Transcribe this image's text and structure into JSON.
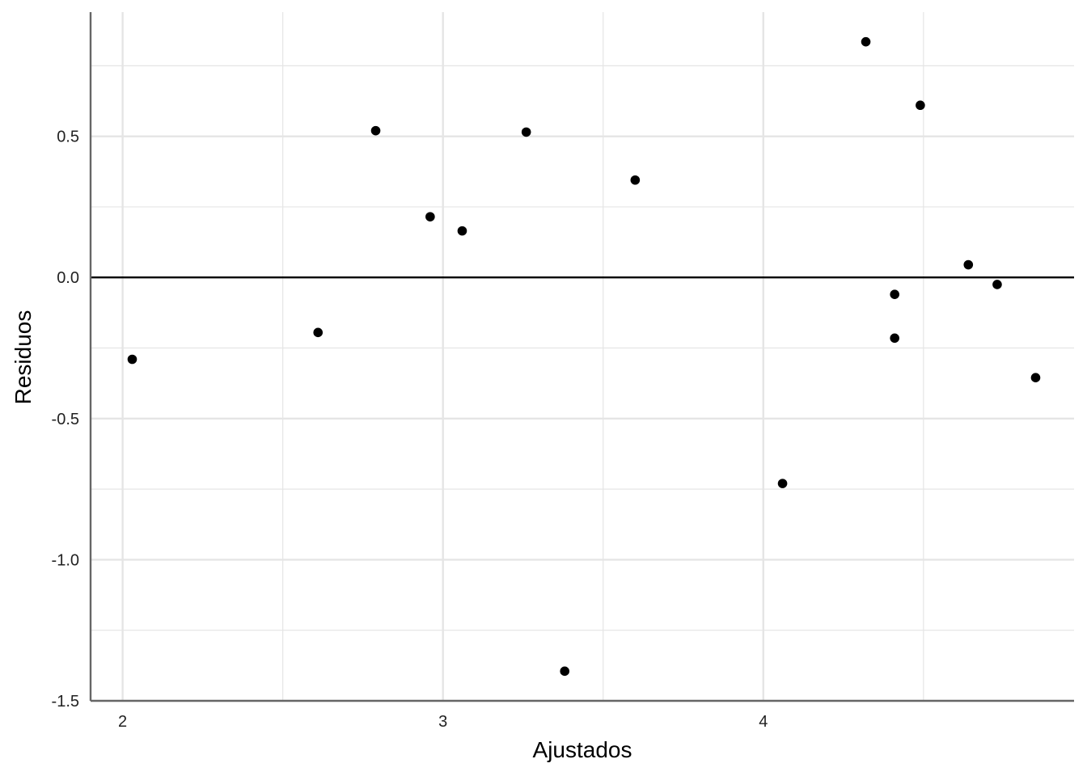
{
  "chart_data": {
    "type": "scatter",
    "title": "",
    "xlabel": "Ajustados",
    "ylabel": "Residuos",
    "xlim": [
      1.9,
      4.97
    ],
    "ylim": [
      -1.5,
      0.94
    ],
    "x_ticks": [
      2,
      3,
      4
    ],
    "x_tick_labels": [
      "2",
      "3",
      "4"
    ],
    "x_minor_ticks": [
      2.5,
      3.5,
      4.5
    ],
    "y_ticks": [
      -1.5,
      -1.0,
      -0.5,
      0.0,
      0.5
    ],
    "y_tick_labels": [
      "-1.5",
      "-1.0",
      "-0.5",
      "0.0",
      "0.5"
    ],
    "y_minor_ticks": [
      -1.25,
      -0.75,
      -0.25,
      0.25,
      0.75
    ],
    "grid": true,
    "reference_line": {
      "y": 0
    },
    "colors": {
      "points": "#000000",
      "grid": "#e5e5e5",
      "axis": "#666666",
      "reference": "#000000"
    },
    "points": [
      {
        "x": 2.03,
        "y": -0.29
      },
      {
        "x": 2.61,
        "y": -0.195
      },
      {
        "x": 2.79,
        "y": 0.52
      },
      {
        "x": 2.96,
        "y": 0.215
      },
      {
        "x": 3.06,
        "y": 0.165
      },
      {
        "x": 3.26,
        "y": 0.515
      },
      {
        "x": 3.38,
        "y": -1.395
      },
      {
        "x": 3.6,
        "y": 0.345
      },
      {
        "x": 4.06,
        "y": -0.73
      },
      {
        "x": 4.32,
        "y": 0.835
      },
      {
        "x": 4.41,
        "y": -0.06
      },
      {
        "x": 4.41,
        "y": -0.215
      },
      {
        "x": 4.49,
        "y": 0.61
      },
      {
        "x": 4.64,
        "y": 0.045
      },
      {
        "x": 4.73,
        "y": -0.025
      },
      {
        "x": 4.85,
        "y": -0.355
      }
    ]
  }
}
